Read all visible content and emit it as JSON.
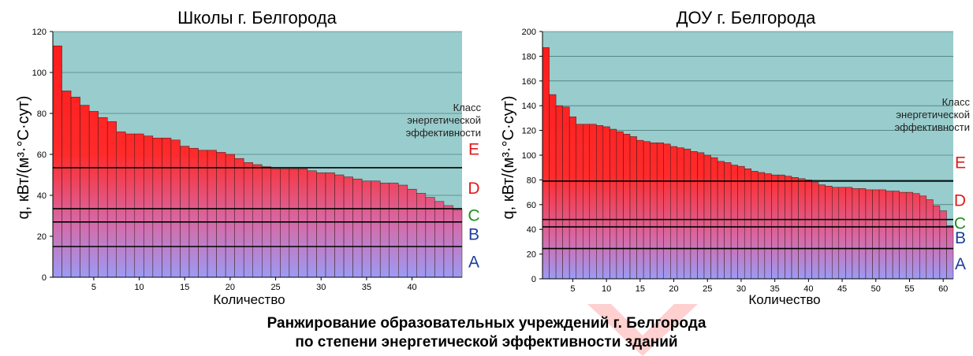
{
  "caption": {
    "line1": "Ранжирование образовательных учреждений г. Белгорода",
    "line2": "по степени энергетической эффективности зданий"
  },
  "colors": {
    "plot_bg": "#99cccc",
    "bar_top": "#ff1a1a",
    "bar_bottom": "#9b9bf4",
    "class_red": "#e21b1b",
    "class_green": "#1f8f1f",
    "class_blue": "#1f3d9c",
    "arrow": "#ffd0d0"
  },
  "chart_data": [
    {
      "type": "bar",
      "title": "Школы г. Белгорода",
      "xlabel": "Количество",
      "ylabel": "q, кВт/(м³·°С·сут)",
      "ylim": [
        0,
        120
      ],
      "yticks": [
        0,
        20,
        40,
        60,
        80,
        100,
        120
      ],
      "xticks": [
        5,
        10,
        15,
        20,
        25,
        30,
        35,
        40
      ],
      "grid": true,
      "class_note": [
        "Класс",
        "энергетической",
        "эффективности"
      ],
      "values": [
        113,
        91,
        88,
        84,
        81,
        78,
        76,
        71,
        70,
        70,
        69,
        68,
        68,
        67,
        64,
        63,
        62,
        62,
        61,
        60,
        58,
        56,
        55,
        54,
        53,
        53,
        53,
        53,
        52,
        51,
        51,
        50,
        49,
        48,
        47,
        47,
        46,
        46,
        45,
        43,
        41,
        39,
        37,
        35,
        33
      ],
      "thresholds": [
        {
          "value": 53.5,
          "label": "E",
          "color": "#e21b1b"
        },
        {
          "value": 33.5,
          "label": "D",
          "color": "#e21b1b"
        },
        {
          "value": 27,
          "label": "C",
          "color": "#1f8f1f"
        },
        {
          "value": 15,
          "label": "B",
          "color": "#1f3d9c"
        },
        {
          "value": 0,
          "label": "A",
          "color": "#1f3d9c"
        }
      ]
    },
    {
      "type": "bar",
      "title": "ДОУ г. Белгорода",
      "xlabel": "Количество",
      "ylabel": "q, кВт/(м³·°С·сут)",
      "ylim": [
        0,
        200
      ],
      "yticks": [
        0,
        20,
        40,
        60,
        80,
        100,
        120,
        140,
        160,
        180,
        200
      ],
      "xticks": [
        5,
        10,
        15,
        20,
        25,
        30,
        35,
        40,
        45,
        50,
        55,
        60
      ],
      "grid": true,
      "class_note": [
        "Класс",
        "энергетической",
        "эффективности"
      ],
      "values": [
        187,
        149,
        140,
        139,
        131,
        125,
        125,
        125,
        124,
        123,
        121,
        119,
        117,
        115,
        112,
        111,
        110,
        110,
        109,
        107,
        106,
        105,
        103,
        102,
        100,
        98,
        95,
        94,
        92,
        91,
        89,
        87,
        86,
        85,
        84,
        84,
        83,
        82,
        81,
        80,
        78,
        76,
        75,
        74,
        74,
        74,
        73,
        73,
        72,
        72,
        72,
        71,
        71,
        70,
        70,
        69,
        67,
        64,
        59,
        55,
        43
      ],
      "thresholds": [
        {
          "value": 79,
          "label": "E",
          "color": "#e21b1b"
        },
        {
          "value": 48,
          "label": "D",
          "color": "#e21b1b"
        },
        {
          "value": 42,
          "label": "C",
          "color": "#1f8f1f"
        },
        {
          "value": 24.5,
          "label": "B",
          "color": "#1f3d9c"
        },
        {
          "value": 0,
          "label": "A",
          "color": "#1f3d9c"
        }
      ]
    }
  ]
}
